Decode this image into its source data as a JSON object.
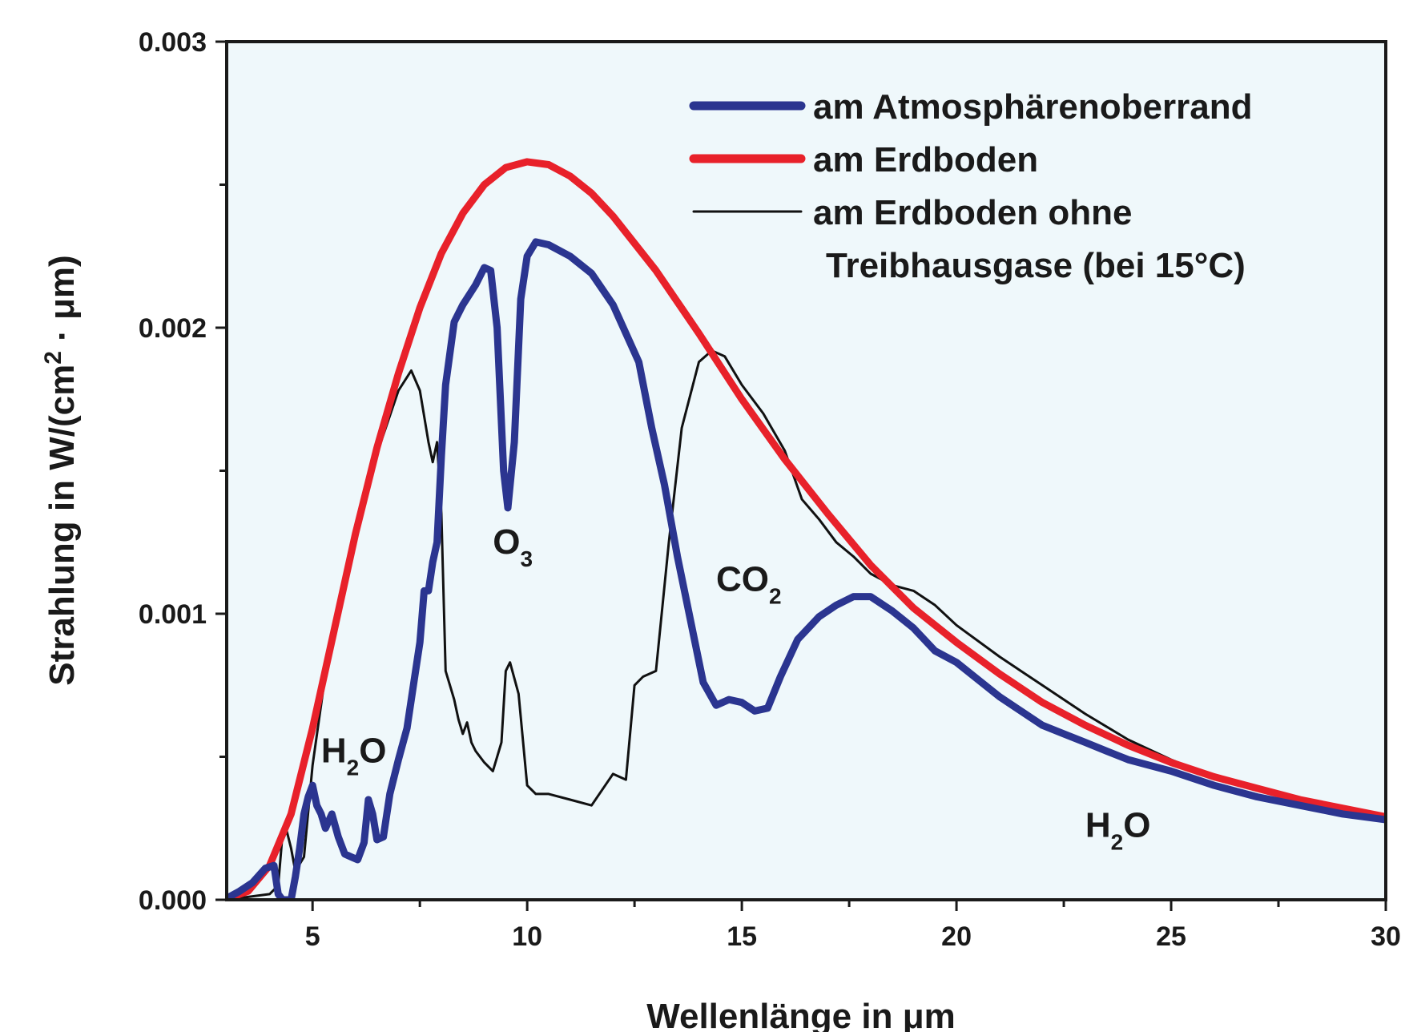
{
  "chart_data": {
    "type": "line",
    "xlabel_prefix": "Wellenlänge in ",
    "xlabel_unit": "μm",
    "ylabel_prefix": "Strahlung in W/(cm",
    "ylabel_sup": "2",
    "ylabel_suffix": " · μm)",
    "xlim": [
      3,
      30
    ],
    "ylim": [
      0,
      0.003
    ],
    "x_ticks": [
      5,
      10,
      15,
      20,
      25,
      30
    ],
    "x_tick_labels": [
      "5",
      "10",
      "15",
      "20",
      "25",
      "30"
    ],
    "y_ticks": [
      0,
      0.001,
      0.002,
      0.003
    ],
    "y_tick_labels": [
      "0.000",
      "0.001",
      "0.002",
      "0.003"
    ],
    "background_color": "#eff8fb",
    "legend_position": "top-right",
    "legend": [
      {
        "text": "am Atmosphärenoberrand",
        "color": "#2b3590",
        "style": "thick"
      },
      {
        "text": "am Erdboden",
        "color": "#e8212a",
        "style": "thick"
      },
      {
        "text": "am Erdboden ohne",
        "text2": "Treibhausgase (bei 15°C)",
        "color": "#111111",
        "style": "thin"
      }
    ],
    "annotations": [
      {
        "main": "H",
        "sub": "2",
        "tail": "O",
        "x": 5.2,
        "y": 0.00048
      },
      {
        "main": "O",
        "sub": "3",
        "tail": "",
        "x": 9.2,
        "y": 0.00121
      },
      {
        "main": "CO",
        "sub": "2",
        "tail": "",
        "x": 14.4,
        "y": 0.00108
      },
      {
        "main": "H",
        "sub": "2",
        "tail": "O",
        "x": 23.0,
        "y": 0.00022
      }
    ],
    "series": [
      {
        "key": "toa",
        "color": "#2b3590",
        "width": 9,
        "points": [
          [
            3.0,
            5e-06
          ],
          [
            3.3,
            3e-05
          ],
          [
            3.6,
            6e-05
          ],
          [
            3.9,
            0.00011
          ],
          [
            4.1,
            0.00012
          ],
          [
            4.2,
            2e-05
          ],
          [
            4.3,
            0.0
          ],
          [
            4.5,
            0.0
          ],
          [
            4.6,
            8e-05
          ],
          [
            4.7,
            0.00018
          ],
          [
            4.8,
            0.0003
          ],
          [
            4.9,
            0.00036
          ],
          [
            5.0,
            0.0004
          ],
          [
            5.1,
            0.00033
          ],
          [
            5.2,
            0.0003
          ],
          [
            5.3,
            0.00025
          ],
          [
            5.45,
            0.0003
          ],
          [
            5.6,
            0.00022
          ],
          [
            5.75,
            0.00016
          ],
          [
            5.9,
            0.00015
          ],
          [
            6.05,
            0.00014
          ],
          [
            6.2,
            0.0002
          ],
          [
            6.3,
            0.00035
          ],
          [
            6.4,
            0.0003
          ],
          [
            6.5,
            0.00021
          ],
          [
            6.65,
            0.00022
          ],
          [
            6.8,
            0.00037
          ],
          [
            7.0,
            0.00049
          ],
          [
            7.2,
            0.0006
          ],
          [
            7.35,
            0.00075
          ],
          [
            7.5,
            0.0009
          ],
          [
            7.6,
            0.00108
          ],
          [
            7.7,
            0.00108
          ],
          [
            7.8,
            0.00118
          ],
          [
            7.9,
            0.00125
          ],
          [
            8.0,
            0.00155
          ],
          [
            8.1,
            0.0018
          ],
          [
            8.3,
            0.00202
          ],
          [
            8.5,
            0.00208
          ],
          [
            8.8,
            0.00215
          ],
          [
            9.0,
            0.00221
          ],
          [
            9.15,
            0.0022
          ],
          [
            9.3,
            0.002
          ],
          [
            9.45,
            0.0015
          ],
          [
            9.55,
            0.00137
          ],
          [
            9.7,
            0.0016
          ],
          [
            9.85,
            0.0021
          ],
          [
            10.0,
            0.00225
          ],
          [
            10.2,
            0.0023
          ],
          [
            10.5,
            0.00229
          ],
          [
            11.0,
            0.00225
          ],
          [
            11.5,
            0.00219
          ],
          [
            12.0,
            0.00208
          ],
          [
            12.3,
            0.00198
          ],
          [
            12.6,
            0.00188
          ],
          [
            12.9,
            0.00165
          ],
          [
            13.2,
            0.00145
          ],
          [
            13.5,
            0.0012
          ],
          [
            13.8,
            0.00098
          ],
          [
            14.1,
            0.00076
          ],
          [
            14.4,
            0.00068
          ],
          [
            14.7,
            0.0007
          ],
          [
            15.0,
            0.00069
          ],
          [
            15.3,
            0.00066
          ],
          [
            15.6,
            0.00067
          ],
          [
            15.9,
            0.00078
          ],
          [
            16.3,
            0.00091
          ],
          [
            16.8,
            0.00099
          ],
          [
            17.2,
            0.00103
          ],
          [
            17.6,
            0.00106
          ],
          [
            18.0,
            0.00106
          ],
          [
            18.5,
            0.00101
          ],
          [
            19.0,
            0.00095
          ],
          [
            19.5,
            0.00087
          ],
          [
            20.0,
            0.00083
          ],
          [
            20.5,
            0.00077
          ],
          [
            21.0,
            0.00071
          ],
          [
            21.5,
            0.00066
          ],
          [
            22.0,
            0.00061
          ],
          [
            22.5,
            0.00058
          ],
          [
            23.0,
            0.00055
          ],
          [
            23.5,
            0.00052
          ],
          [
            24.0,
            0.00049
          ],
          [
            25.0,
            0.00045
          ],
          [
            26.0,
            0.0004
          ],
          [
            27.0,
            0.00036
          ],
          [
            28.0,
            0.00033
          ],
          [
            29.0,
            0.0003
          ],
          [
            30.0,
            0.00028
          ]
        ]
      },
      {
        "key": "surface",
        "color": "#e8212a",
        "width": 9,
        "points": [
          [
            3.0,
            3e-06
          ],
          [
            3.5,
            3e-05
          ],
          [
            4.0,
            0.00012
          ],
          [
            4.5,
            0.0003
          ],
          [
            5.0,
            0.0006
          ],
          [
            5.5,
            0.00094
          ],
          [
            6.0,
            0.00128
          ],
          [
            6.5,
            0.00158
          ],
          [
            7.0,
            0.00184
          ],
          [
            7.5,
            0.00207
          ],
          [
            8.0,
            0.00226
          ],
          [
            8.5,
            0.0024
          ],
          [
            9.0,
            0.0025
          ],
          [
            9.5,
            0.00256
          ],
          [
            10.0,
            0.00258
          ],
          [
            10.5,
            0.00257
          ],
          [
            11.0,
            0.00253
          ],
          [
            11.5,
            0.00247
          ],
          [
            12.0,
            0.00239
          ],
          [
            13.0,
            0.0022
          ],
          [
            14.0,
            0.00198
          ],
          [
            15.0,
            0.00175
          ],
          [
            16.0,
            0.00154
          ],
          [
            17.0,
            0.00135
          ],
          [
            18.0,
            0.00117
          ],
          [
            19.0,
            0.00102
          ],
          [
            20.0,
            0.0009
          ],
          [
            21.0,
            0.00079
          ],
          [
            22.0,
            0.00069
          ],
          [
            23.0,
            0.00061
          ],
          [
            24.0,
            0.00054
          ],
          [
            25.0,
            0.00048
          ],
          [
            26.0,
            0.00043
          ],
          [
            27.0,
            0.00039
          ],
          [
            28.0,
            0.00035
          ],
          [
            29.0,
            0.00032
          ],
          [
            30.0,
            0.00029
          ]
        ]
      },
      {
        "key": "no_ghg",
        "color": "#111111",
        "width": 3,
        "points": [
          [
            3.0,
            0.0
          ],
          [
            3.5,
            1e-05
          ],
          [
            4.0,
            2e-05
          ],
          [
            4.2,
            5e-05
          ],
          [
            4.3,
            0.00023
          ],
          [
            4.4,
            0.00024
          ],
          [
            4.5,
            0.00018
          ],
          [
            4.6,
            0.0001
          ],
          [
            4.8,
            0.00015
          ],
          [
            5.0,
            0.00047
          ],
          [
            5.3,
            0.00079
          ],
          [
            5.6,
            0.00099
          ],
          [
            6.0,
            0.00126
          ],
          [
            6.5,
            0.00156
          ],
          [
            7.0,
            0.00178
          ],
          [
            7.3,
            0.00185
          ],
          [
            7.5,
            0.00178
          ],
          [
            7.7,
            0.0016
          ],
          [
            7.8,
            0.00153
          ],
          [
            7.9,
            0.0016
          ],
          [
            8.0,
            0.00135
          ],
          [
            8.1,
            0.0008
          ],
          [
            8.2,
            0.00075
          ],
          [
            8.3,
            0.0007
          ],
          [
            8.4,
            0.00063
          ],
          [
            8.5,
            0.00058
          ],
          [
            8.6,
            0.00062
          ],
          [
            8.7,
            0.00055
          ],
          [
            8.8,
            0.00052
          ],
          [
            9.0,
            0.00048
          ],
          [
            9.2,
            0.00045
          ],
          [
            9.4,
            0.00055
          ],
          [
            9.5,
            0.0008
          ],
          [
            9.6,
            0.00083
          ],
          [
            9.8,
            0.00072
          ],
          [
            10.0,
            0.0004
          ],
          [
            10.2,
            0.00037
          ],
          [
            10.5,
            0.00037
          ],
          [
            11.0,
            0.00035
          ],
          [
            11.5,
            0.00033
          ],
          [
            12.0,
            0.00044
          ],
          [
            12.3,
            0.00042
          ],
          [
            12.5,
            0.00075
          ],
          [
            12.7,
            0.00078
          ],
          [
            13.0,
            0.0008
          ],
          [
            13.3,
            0.00125
          ],
          [
            13.6,
            0.00165
          ],
          [
            14.0,
            0.00188
          ],
          [
            14.3,
            0.00192
          ],
          [
            14.6,
            0.0019
          ],
          [
            15.0,
            0.0018
          ],
          [
            15.5,
            0.0017
          ],
          [
            16.0,
            0.00157
          ],
          [
            16.4,
            0.0014
          ],
          [
            16.8,
            0.00133
          ],
          [
            17.2,
            0.00125
          ],
          [
            17.6,
            0.0012
          ],
          [
            18.0,
            0.00114
          ],
          [
            18.5,
            0.0011
          ],
          [
            19.0,
            0.00108
          ],
          [
            19.5,
            0.00103
          ],
          [
            20.0,
            0.00096
          ],
          [
            21.0,
            0.00085
          ],
          [
            22.0,
            0.00075
          ],
          [
            23.0,
            0.00065
          ],
          [
            24.0,
            0.00056
          ],
          [
            25.0,
            0.00049
          ],
          [
            26.0,
            0.00043
          ],
          [
            27.0,
            0.00039
          ],
          [
            28.0,
            0.00035
          ],
          [
            29.0,
            0.00032
          ],
          [
            30.0,
            0.00029
          ]
        ]
      }
    ]
  }
}
